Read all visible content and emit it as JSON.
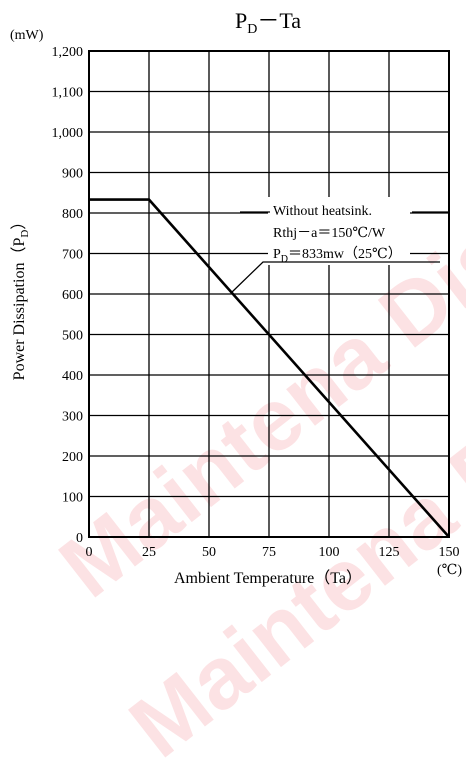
{
  "watermark": {
    "text": "Maintena Discontinued",
    "color": "#e60012"
  },
  "chart_data": {
    "type": "line",
    "title": "P",
    "title_subscript": "D",
    "title_suffix": "－Ta",
    "xlabel": "Ambient Temperature（Ta）",
    "x_unit": "(℃)",
    "ylabel": "Power Dissipation（P",
    "ylabel_subscript": "D",
    "ylabel_suffix": "）",
    "y_unit": "(mW)",
    "xlim": [
      0,
      150
    ],
    "ylim": [
      0,
      1200
    ],
    "x_ticks": [
      {
        "value": 0,
        "label": "0"
      },
      {
        "value": 25,
        "label": "25"
      },
      {
        "value": 50,
        "label": "50"
      },
      {
        "value": 75,
        "label": "75"
      },
      {
        "value": 100,
        "label": "100"
      },
      {
        "value": 125,
        "label": "125"
      },
      {
        "value": 150,
        "label": "150"
      }
    ],
    "y_ticks": [
      {
        "value": 0,
        "label": "0"
      },
      {
        "value": 100,
        "label": "100"
      },
      {
        "value": 200,
        "label": "200"
      },
      {
        "value": 300,
        "label": "300"
      },
      {
        "value": 400,
        "label": "400"
      },
      {
        "value": 500,
        "label": "500"
      },
      {
        "value": 600,
        "label": "600"
      },
      {
        "value": 700,
        "label": "700"
      },
      {
        "value": 800,
        "label": "800"
      },
      {
        "value": 900,
        "label": "900"
      },
      {
        "value": 1000,
        "label": "1,000"
      },
      {
        "value": 1100,
        "label": "1,100"
      },
      {
        "value": 1200,
        "label": "1,200"
      }
    ],
    "grid": true,
    "series": [
      {
        "x": [
          0,
          25,
          150
        ],
        "y": [
          833,
          833,
          0
        ]
      }
    ],
    "annotations": [
      {
        "text": "Without heatsink."
      },
      {
        "text": "Rthj－a＝150℃/W"
      },
      {
        "text": "P",
        "subscript": "D",
        "suffix": "＝833mw（25℃）"
      }
    ]
  }
}
